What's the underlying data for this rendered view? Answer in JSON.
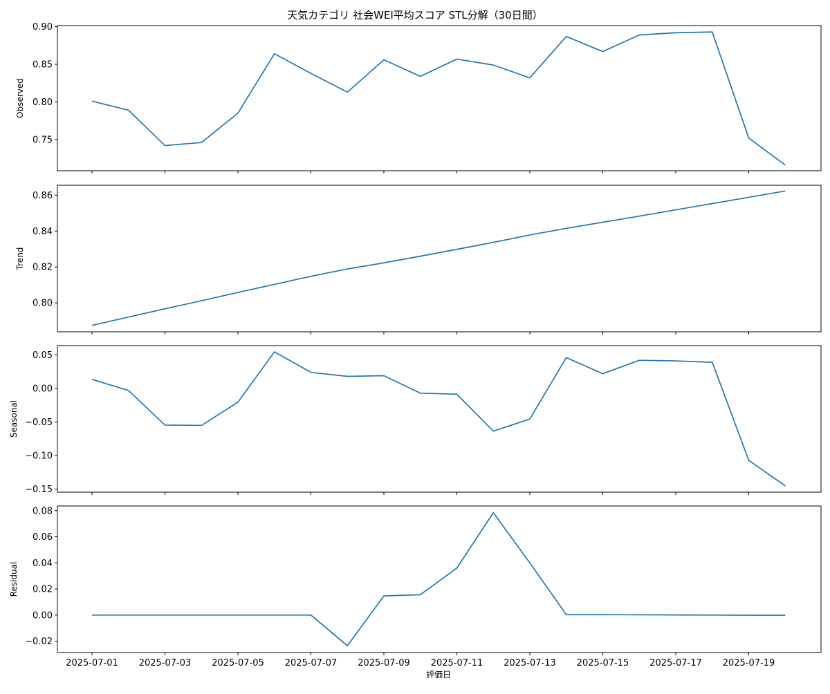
{
  "figure": {
    "title": "天気カテゴリ 社会WEI平均スコア STL分解（30日間）",
    "xlabel": "評価日",
    "line_color": "#1f77b4"
  },
  "chart_data": [
    {
      "type": "line",
      "ylabel": "Observed",
      "x": [
        "2025-07-01",
        "2025-07-02",
        "2025-07-03",
        "2025-07-04",
        "2025-07-05",
        "2025-07-06",
        "2025-07-07",
        "2025-07-08",
        "2025-07-09",
        "2025-07-10",
        "2025-07-11",
        "2025-07-12",
        "2025-07-13",
        "2025-07-14",
        "2025-07-15",
        "2025-07-16",
        "2025-07-17",
        "2025-07-18",
        "2025-07-19",
        "2025-07-20"
      ],
      "values": [
        0.801,
        0.789,
        0.742,
        0.746,
        0.785,
        0.864,
        0.838,
        0.813,
        0.856,
        0.834,
        0.857,
        0.849,
        0.832,
        0.887,
        0.867,
        0.889,
        0.892,
        0.893,
        0.752,
        0.716
      ],
      "ylim": [
        0.7085,
        0.9015
      ],
      "yticks": [
        "0.75",
        "0.80",
        "0.85",
        "0.90"
      ]
    },
    {
      "type": "line",
      "ylabel": "Trend",
      "x": [
        "2025-07-01",
        "2025-07-02",
        "2025-07-03",
        "2025-07-04",
        "2025-07-05",
        "2025-07-06",
        "2025-07-07",
        "2025-07-08",
        "2025-07-09",
        "2025-07-10",
        "2025-07-11",
        "2025-07-12",
        "2025-07-13",
        "2025-07-14",
        "2025-07-15",
        "2025-07-16",
        "2025-07-17",
        "2025-07-18",
        "2025-07-19",
        "2025-07-20"
      ],
      "values": [
        0.7875,
        0.7921,
        0.7967,
        0.8012,
        0.8058,
        0.8103,
        0.8148,
        0.8189,
        0.8223,
        0.826,
        0.8298,
        0.8337,
        0.8378,
        0.8415,
        0.8449,
        0.8483,
        0.8518,
        0.8553,
        0.8588,
        0.8623
      ],
      "ylim": [
        0.7839,
        0.8655
      ],
      "yticks": [
        "0.80",
        "0.82",
        "0.84",
        "0.86"
      ]
    },
    {
      "type": "line",
      "ylabel": "Seasonal",
      "x": [
        "2025-07-01",
        "2025-07-02",
        "2025-07-03",
        "2025-07-04",
        "2025-07-05",
        "2025-07-06",
        "2025-07-07",
        "2025-07-08",
        "2025-07-09",
        "2025-07-10",
        "2025-07-11",
        "2025-07-12",
        "2025-07-13",
        "2025-07-14",
        "2025-07-15",
        "2025-07-16",
        "2025-07-17",
        "2025-07-18",
        "2025-07-19",
        "2025-07-20"
      ],
      "values": [
        0.0135,
        -0.003,
        -0.0545,
        -0.055,
        -0.0205,
        0.0545,
        0.024,
        0.018,
        0.019,
        -0.007,
        -0.0085,
        -0.0635,
        -0.0455,
        0.046,
        0.022,
        0.042,
        0.041,
        0.039,
        -0.107,
        -0.145
      ],
      "ylim": [
        -0.1544,
        0.0638
      ],
      "yticks": [
        "−0.15",
        "−0.10",
        "−0.05",
        "0.00",
        "0.05"
      ]
    },
    {
      "type": "line",
      "ylabel": "Residual",
      "x": [
        "2025-07-01",
        "2025-07-02",
        "2025-07-03",
        "2025-07-04",
        "2025-07-05",
        "2025-07-06",
        "2025-07-07",
        "2025-07-08",
        "2025-07-09",
        "2025-07-10",
        "2025-07-11",
        "2025-07-12",
        "2025-07-13",
        "2025-07-14",
        "2025-07-15",
        "2025-07-16",
        "2025-07-17",
        "2025-07-18",
        "2025-07-19",
        "2025-07-20"
      ],
      "values": [
        0.0,
        0.0,
        0.0,
        0.0,
        0.0,
        0.0,
        0.0,
        -0.0235,
        0.0147,
        0.0156,
        0.036,
        0.0785,
        0.04,
        0.0003,
        0.0003,
        0.0002,
        0.0001,
        0.0,
        -0.0001,
        -0.0001
      ],
      "ylim": [
        -0.0287,
        0.0836
      ],
      "yticks": [
        "−0.02",
        "0.00",
        "0.02",
        "0.04",
        "0.06",
        "0.08"
      ]
    }
  ],
  "x_ticks": [
    "2025-07-01",
    "2025-07-03",
    "2025-07-05",
    "2025-07-07",
    "2025-07-09",
    "2025-07-11",
    "2025-07-13",
    "2025-07-15",
    "2025-07-17",
    "2025-07-19"
  ]
}
